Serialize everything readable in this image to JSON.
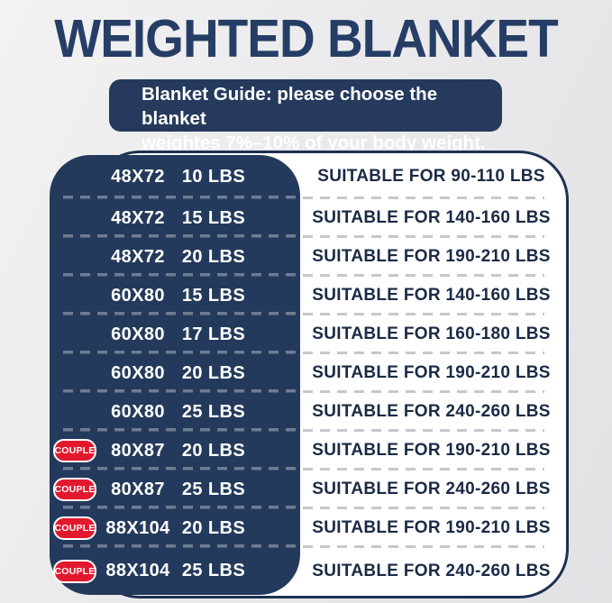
{
  "title": "WEIGHTED BLANKET",
  "banner": {
    "line1": "Blanket Guide: please choose the blanket",
    "line2": "weightes 7%–10% of your body weight."
  },
  "colors": {
    "navy": "#243a5c",
    "title_navy": "#263e66",
    "badge_red": "#e2182e",
    "panel_border": "#1d3150",
    "right_text": "#1b2a45",
    "left_dash": "#6f7c94",
    "right_dash": "#c3c8d0",
    "background": "#eaeaec"
  },
  "rows": [
    {
      "size": "48X72",
      "weight": "10 LBS",
      "suitable": "SUITABLE FOR 90-110 LBS"
    },
    {
      "size": "48X72",
      "weight": "15 LBS",
      "suitable": "SUITABLE FOR 140-160 LBS"
    },
    {
      "size": "48X72",
      "weight": "20 LBS",
      "suitable": "SUITABLE FOR 190-210 LBS"
    },
    {
      "size": "60X80",
      "weight": "15 LBS",
      "suitable": "SUITABLE FOR 140-160 LBS"
    },
    {
      "size": "60X80",
      "weight": "17 LBS",
      "suitable": "SUITABLE FOR 160-180 LBS"
    },
    {
      "size": "60X80",
      "weight": "20 LBS",
      "suitable": "SUITABLE FOR 190-210 LBS"
    },
    {
      "size": "60X80",
      "weight": "25 LBS",
      "suitable": "SUITABLE FOR 240-260 LBS"
    },
    {
      "badge": "COUPLE",
      "size": "80X87",
      "weight": "20 LBS",
      "suitable": "SUITABLE FOR 190-210 LBS"
    },
    {
      "badge": "COUPLE",
      "size": "80X87",
      "weight": "25 LBS",
      "suitable": "SUITABLE FOR 240-260 LBS"
    },
    {
      "badge": "COUPLE",
      "size": "88X104",
      "weight": "20 LBS",
      "suitable": "SUITABLE FOR 190-210 LBS"
    },
    {
      "badge": "COUPLE",
      "size": "88X104",
      "weight": "25 LBS",
      "suitable": "SUITABLE FOR 240-260 LBS"
    }
  ],
  "chart_data": {
    "type": "table",
    "title": "WEIGHTED BLANKET",
    "note": "Blanket Guide: please choose the blanket weightes 7%–10% of your body weight.",
    "columns": [
      "couple",
      "size_inches",
      "blanket_weight",
      "suitable_for"
    ],
    "rows": [
      [
        "",
        "48X72",
        "10 LBS",
        "SUITABLE FOR 90-110 LBS"
      ],
      [
        "",
        "48X72",
        "15 LBS",
        "SUITABLE FOR 140-160 LBS"
      ],
      [
        "",
        "48X72",
        "20 LBS",
        "SUITABLE FOR 190-210 LBS"
      ],
      [
        "",
        "60X80",
        "15 LBS",
        "SUITABLE FOR 140-160 LBS"
      ],
      [
        "",
        "60X80",
        "17 LBS",
        "SUITABLE FOR 160-180 LBS"
      ],
      [
        "",
        "60X80",
        "20 LBS",
        "SUITABLE FOR 190-210 LBS"
      ],
      [
        "",
        "60X80",
        "25 LBS",
        "SUITABLE FOR 240-260 LBS"
      ],
      [
        "COUPLE",
        "80X87",
        "20 LBS",
        "SUITABLE FOR 190-210 LBS"
      ],
      [
        "COUPLE",
        "80X87",
        "25 LBS",
        "SUITABLE FOR 240-260 LBS"
      ],
      [
        "COUPLE",
        "88X104",
        "20 LBS",
        "SUITABLE FOR 190-210 LBS"
      ],
      [
        "COUPLE",
        "88X104",
        "25 LBS",
        "SUITABLE FOR 240-260 LBS"
      ]
    ]
  }
}
